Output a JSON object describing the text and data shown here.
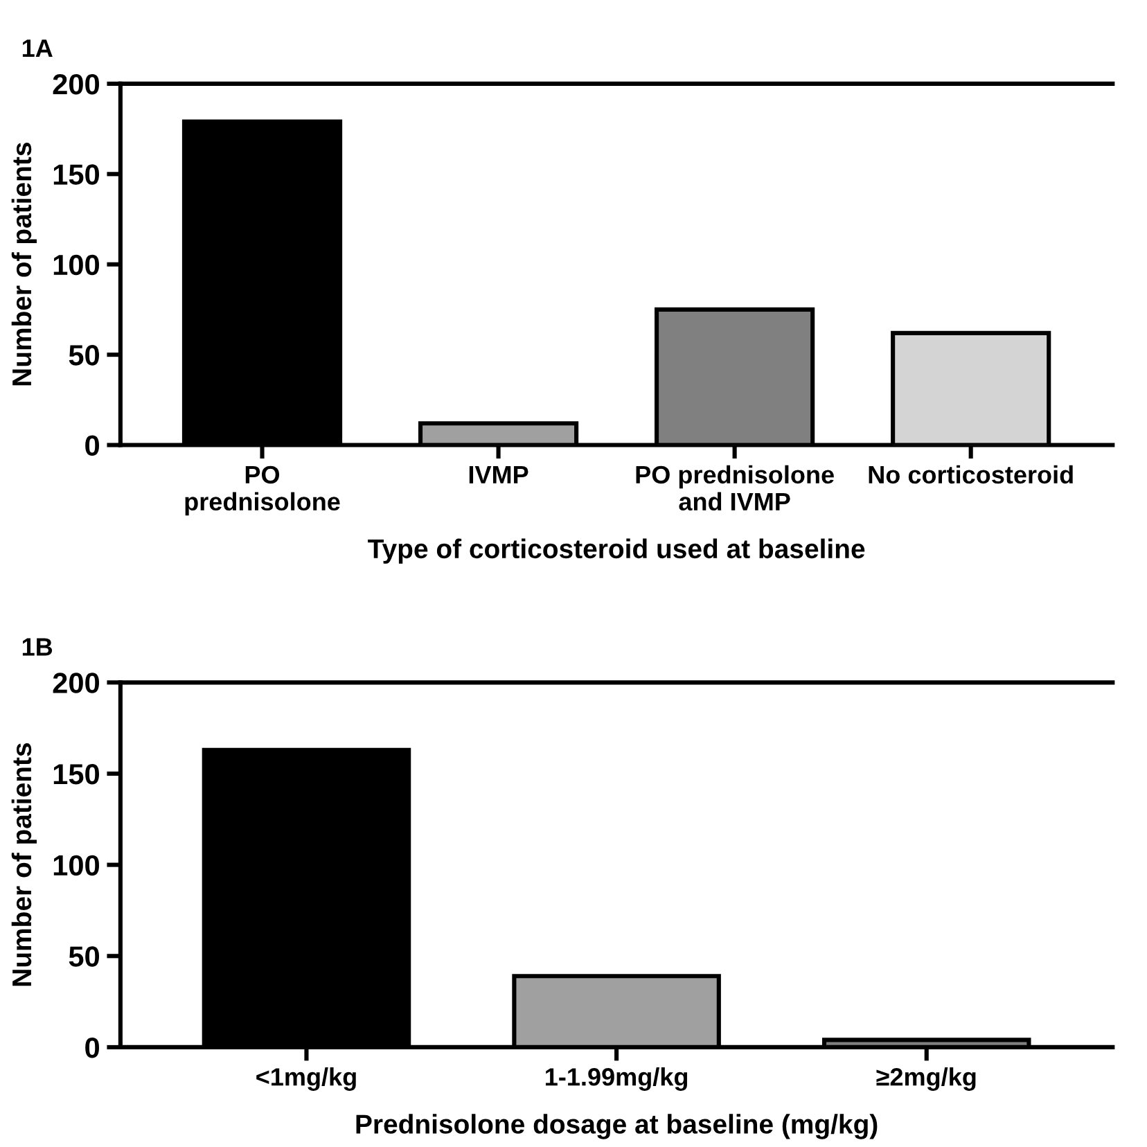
{
  "chart_data": [
    {
      "type": "bar",
      "title": "1A",
      "xlabel": "Type of corticosteroid used at baseline",
      "ylabel": "Number of patients",
      "categories": [
        "PO\nprednisolone",
        "IVMP",
        "PO prednisolone\nand IVMP",
        "No corticosteroid"
      ],
      "values": [
        179,
        12,
        75,
        62
      ],
      "colors": [
        "#000000",
        "#a0a0a0",
        "#808080",
        "#d4d4d4"
      ],
      "ylim": [
        0,
        200
      ],
      "yticks": [
        0,
        50,
        100,
        150,
        200
      ],
      "grid": false
    },
    {
      "type": "bar",
      "title": "1B",
      "xlabel": "Prednisolone dosage at baseline (mg/kg)",
      "ylabel": "Number of patients",
      "categories": [
        "<1mg/kg",
        "1-1.99mg/kg",
        "≥2mg/kg"
      ],
      "values": [
        163,
        39,
        4
      ],
      "colors": [
        "#000000",
        "#a0a0a0",
        "#808080"
      ],
      "ylim": [
        0,
        200
      ],
      "yticks": [
        0,
        50,
        100,
        150,
        200
      ],
      "grid": false
    }
  ]
}
